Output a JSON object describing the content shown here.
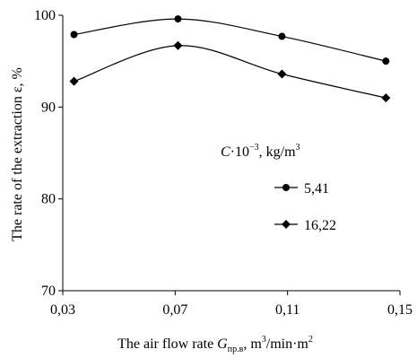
{
  "chart_data": {
    "type": "line",
    "title": "",
    "xlabel": "The air flow rate G_пр.в, m3/min·m2",
    "xlabel_parts": {
      "prefix": "The air flow rate ",
      "symbol": "G",
      "subscript": "пр.в",
      "unit_sep": ", m",
      "exp1": "3",
      "unit_mid": "/min·m",
      "exp2": "2"
    },
    "ylabel": "The rate of the extraction ε, %",
    "xlim": [
      0.03,
      0.15
    ],
    "ylim": [
      70,
      100
    ],
    "x_ticks": [
      "0,03",
      "0,07",
      "0,11",
      "0,15"
    ],
    "x_tick_values": [
      0.03,
      0.07,
      0.11,
      0.15
    ],
    "y_ticks": [
      "70",
      "80",
      "90",
      "100"
    ],
    "y_tick_values": [
      70,
      80,
      90,
      100
    ],
    "grid": false,
    "legend": {
      "placement": "right",
      "title": "C·10−3, kg/m3",
      "title_parts": {
        "symbol": "C",
        "mid": "·10",
        "exp1": "−3",
        "unit": ", kg/m",
        "exp2": "3"
      }
    },
    "series": [
      {
        "name": "5,41",
        "marker": "circle",
        "color": "#000000",
        "x": [
          0.034,
          0.071,
          0.108,
          0.145
        ],
        "y": [
          97.9,
          99.6,
          97.7,
          95.0
        ]
      },
      {
        "name": "16,22",
        "marker": "diamond",
        "color": "#000000",
        "x": [
          0.034,
          0.071,
          0.108,
          0.145
        ],
        "y": [
          92.8,
          96.7,
          93.6,
          91.0
        ]
      }
    ]
  }
}
